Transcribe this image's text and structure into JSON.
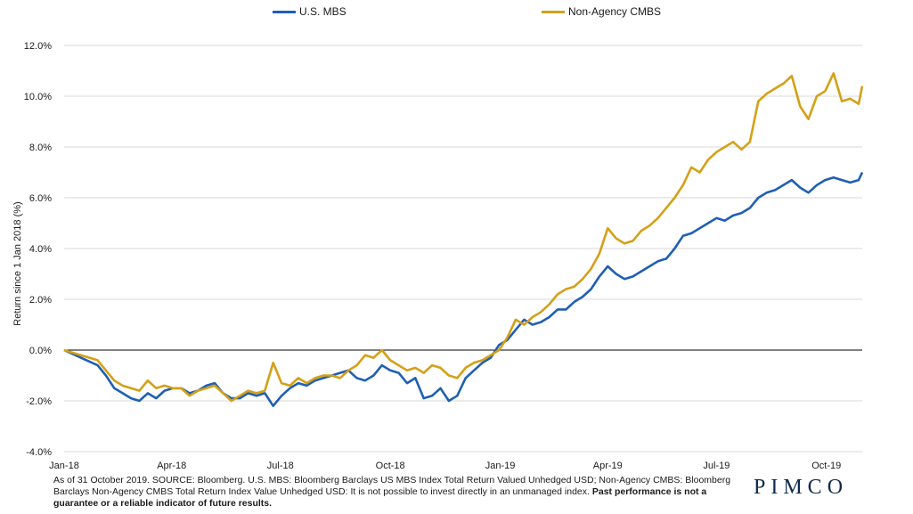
{
  "chart_data": {
    "type": "line",
    "ylabel": "Return since 1 Jan 2018 (%)",
    "xlabel": "",
    "x_ticks": [
      "Jan-18",
      "Apr-18",
      "Jul-18",
      "Oct-18",
      "Jan-19",
      "Apr-19",
      "Jul-19",
      "Oct-19"
    ],
    "y_ticks": [
      "-4.0%",
      "-2.0%",
      "0.0%",
      "2.0%",
      "4.0%",
      "6.0%",
      "8.0%",
      "10.0%",
      "12.0%"
    ],
    "ylim": [
      -4,
      12
    ],
    "xlim": [
      "2018-01-01",
      "2019-10-31"
    ],
    "grid": "horizontal",
    "legend_position": "top",
    "series": [
      {
        "name": "U.S. MBS",
        "color": "#1f5fb4",
        "points": [
          [
            "2018-01-01",
            0.0
          ],
          [
            "2018-01-15",
            -0.3
          ],
          [
            "2018-01-29",
            -0.6
          ],
          [
            "2018-02-05",
            -1.0
          ],
          [
            "2018-02-12",
            -1.5
          ],
          [
            "2018-02-19",
            -1.7
          ],
          [
            "2018-02-26",
            -1.9
          ],
          [
            "2018-03-05",
            -2.0
          ],
          [
            "2018-03-12",
            -1.7
          ],
          [
            "2018-03-19",
            -1.9
          ],
          [
            "2018-03-26",
            -1.6
          ],
          [
            "2018-04-02",
            -1.5
          ],
          [
            "2018-04-09",
            -1.5
          ],
          [
            "2018-04-16",
            -1.7
          ],
          [
            "2018-04-23",
            -1.6
          ],
          [
            "2018-04-30",
            -1.4
          ],
          [
            "2018-05-07",
            -1.3
          ],
          [
            "2018-05-14",
            -1.7
          ],
          [
            "2018-05-21",
            -1.9
          ],
          [
            "2018-05-28",
            -1.9
          ],
          [
            "2018-06-04",
            -1.7
          ],
          [
            "2018-06-11",
            -1.8
          ],
          [
            "2018-06-18",
            -1.7
          ],
          [
            "2018-06-25",
            -2.2
          ],
          [
            "2018-07-02",
            -1.8
          ],
          [
            "2018-07-09",
            -1.5
          ],
          [
            "2018-07-16",
            -1.3
          ],
          [
            "2018-07-23",
            -1.4
          ],
          [
            "2018-07-30",
            -1.2
          ],
          [
            "2018-08-06",
            -1.1
          ],
          [
            "2018-08-13",
            -1.0
          ],
          [
            "2018-08-20",
            -0.9
          ],
          [
            "2018-08-27",
            -0.8
          ],
          [
            "2018-09-03",
            -1.1
          ],
          [
            "2018-09-10",
            -1.2
          ],
          [
            "2018-09-17",
            -1.0
          ],
          [
            "2018-09-24",
            -0.6
          ],
          [
            "2018-10-01",
            -0.8
          ],
          [
            "2018-10-08",
            -0.9
          ],
          [
            "2018-10-15",
            -1.3
          ],
          [
            "2018-10-22",
            -1.1
          ],
          [
            "2018-10-29",
            -1.9
          ],
          [
            "2018-11-05",
            -1.8
          ],
          [
            "2018-11-12",
            -1.5
          ],
          [
            "2018-11-19",
            -2.0
          ],
          [
            "2018-11-26",
            -1.8
          ],
          [
            "2018-12-03",
            -1.1
          ],
          [
            "2018-12-10",
            -0.8
          ],
          [
            "2018-12-17",
            -0.5
          ],
          [
            "2018-12-24",
            -0.3
          ],
          [
            "2018-12-31",
            0.2
          ],
          [
            "2019-01-07",
            0.4
          ],
          [
            "2019-01-14",
            0.8
          ],
          [
            "2019-01-21",
            1.2
          ],
          [
            "2019-01-28",
            1.0
          ],
          [
            "2019-02-04",
            1.1
          ],
          [
            "2019-02-11",
            1.3
          ],
          [
            "2019-02-18",
            1.6
          ],
          [
            "2019-02-25",
            1.6
          ],
          [
            "2019-03-04",
            1.9
          ],
          [
            "2019-03-11",
            2.1
          ],
          [
            "2019-03-18",
            2.4
          ],
          [
            "2019-03-25",
            2.9
          ],
          [
            "2019-04-01",
            3.3
          ],
          [
            "2019-04-08",
            3.0
          ],
          [
            "2019-04-15",
            2.8
          ],
          [
            "2019-04-22",
            2.9
          ],
          [
            "2019-04-29",
            3.1
          ],
          [
            "2019-05-06",
            3.3
          ],
          [
            "2019-05-13",
            3.5
          ],
          [
            "2019-05-20",
            3.6
          ],
          [
            "2019-05-27",
            4.0
          ],
          [
            "2019-06-03",
            4.5
          ],
          [
            "2019-06-10",
            4.6
          ],
          [
            "2019-06-17",
            4.8
          ],
          [
            "2019-06-24",
            5.0
          ],
          [
            "2019-07-01",
            5.2
          ],
          [
            "2019-07-08",
            5.1
          ],
          [
            "2019-07-15",
            5.3
          ],
          [
            "2019-07-22",
            5.4
          ],
          [
            "2019-07-29",
            5.6
          ],
          [
            "2019-08-05",
            6.0
          ],
          [
            "2019-08-12",
            6.2
          ],
          [
            "2019-08-19",
            6.3
          ],
          [
            "2019-08-26",
            6.5
          ],
          [
            "2019-09-02",
            6.7
          ],
          [
            "2019-09-09",
            6.4
          ],
          [
            "2019-09-16",
            6.2
          ],
          [
            "2019-09-23",
            6.5
          ],
          [
            "2019-09-30",
            6.7
          ],
          [
            "2019-10-07",
            6.8
          ],
          [
            "2019-10-14",
            6.7
          ],
          [
            "2019-10-21",
            6.6
          ],
          [
            "2019-10-28",
            6.7
          ],
          [
            "2019-10-31",
            7.0
          ]
        ]
      },
      {
        "name": "Non-Agency CMBS",
        "color": "#d4a017",
        "points": [
          [
            "2018-01-01",
            0.0
          ],
          [
            "2018-01-15",
            -0.2
          ],
          [
            "2018-01-29",
            -0.4
          ],
          [
            "2018-02-05",
            -0.8
          ],
          [
            "2018-02-12",
            -1.2
          ],
          [
            "2018-02-19",
            -1.4
          ],
          [
            "2018-02-26",
            -1.5
          ],
          [
            "2018-03-05",
            -1.6
          ],
          [
            "2018-03-12",
            -1.2
          ],
          [
            "2018-03-19",
            -1.5
          ],
          [
            "2018-03-26",
            -1.4
          ],
          [
            "2018-04-02",
            -1.5
          ],
          [
            "2018-04-09",
            -1.5
          ],
          [
            "2018-04-16",
            -1.8
          ],
          [
            "2018-04-23",
            -1.6
          ],
          [
            "2018-04-30",
            -1.5
          ],
          [
            "2018-05-07",
            -1.4
          ],
          [
            "2018-05-14",
            -1.7
          ],
          [
            "2018-05-21",
            -2.0
          ],
          [
            "2018-05-28",
            -1.8
          ],
          [
            "2018-06-04",
            -1.6
          ],
          [
            "2018-06-11",
            -1.7
          ],
          [
            "2018-06-18",
            -1.6
          ],
          [
            "2018-06-25",
            -0.5
          ],
          [
            "2018-07-02",
            -1.3
          ],
          [
            "2018-07-09",
            -1.4
          ],
          [
            "2018-07-16",
            -1.1
          ],
          [
            "2018-07-23",
            -1.3
          ],
          [
            "2018-07-30",
            -1.1
          ],
          [
            "2018-08-06",
            -1.0
          ],
          [
            "2018-08-13",
            -1.0
          ],
          [
            "2018-08-20",
            -1.1
          ],
          [
            "2018-08-27",
            -0.8
          ],
          [
            "2018-09-03",
            -0.6
          ],
          [
            "2018-09-10",
            -0.2
          ],
          [
            "2018-09-17",
            -0.3
          ],
          [
            "2018-09-24",
            0.0
          ],
          [
            "2018-10-01",
            -0.4
          ],
          [
            "2018-10-08",
            -0.6
          ],
          [
            "2018-10-15",
            -0.8
          ],
          [
            "2018-10-22",
            -0.7
          ],
          [
            "2018-10-29",
            -0.9
          ],
          [
            "2018-11-05",
            -0.6
          ],
          [
            "2018-11-12",
            -0.7
          ],
          [
            "2018-11-19",
            -1.0
          ],
          [
            "2018-11-26",
            -1.1
          ],
          [
            "2018-12-03",
            -0.7
          ],
          [
            "2018-12-10",
            -0.5
          ],
          [
            "2018-12-17",
            -0.4
          ],
          [
            "2018-12-24",
            -0.2
          ],
          [
            "2018-12-31",
            0.0
          ],
          [
            "2019-01-07",
            0.5
          ],
          [
            "2019-01-14",
            1.2
          ],
          [
            "2019-01-21",
            1.0
          ],
          [
            "2019-01-28",
            1.3
          ],
          [
            "2019-02-04",
            1.5
          ],
          [
            "2019-02-11",
            1.8
          ],
          [
            "2019-02-18",
            2.2
          ],
          [
            "2019-02-25",
            2.4
          ],
          [
            "2019-03-04",
            2.5
          ],
          [
            "2019-03-11",
            2.8
          ],
          [
            "2019-03-18",
            3.2
          ],
          [
            "2019-03-25",
            3.8
          ],
          [
            "2019-04-01",
            4.8
          ],
          [
            "2019-04-08",
            4.4
          ],
          [
            "2019-04-15",
            4.2
          ],
          [
            "2019-04-22",
            4.3
          ],
          [
            "2019-04-29",
            4.7
          ],
          [
            "2019-05-06",
            4.9
          ],
          [
            "2019-05-13",
            5.2
          ],
          [
            "2019-05-20",
            5.6
          ],
          [
            "2019-05-27",
            6.0
          ],
          [
            "2019-06-03",
            6.5
          ],
          [
            "2019-06-10",
            7.2
          ],
          [
            "2019-06-17",
            7.0
          ],
          [
            "2019-06-24",
            7.5
          ],
          [
            "2019-07-01",
            7.8
          ],
          [
            "2019-07-08",
            8.0
          ],
          [
            "2019-07-15",
            8.2
          ],
          [
            "2019-07-22",
            7.9
          ],
          [
            "2019-07-29",
            8.2
          ],
          [
            "2019-08-05",
            9.8
          ],
          [
            "2019-08-12",
            10.1
          ],
          [
            "2019-08-19",
            10.3
          ],
          [
            "2019-08-26",
            10.5
          ],
          [
            "2019-09-02",
            10.8
          ],
          [
            "2019-09-09",
            9.6
          ],
          [
            "2019-09-16",
            9.1
          ],
          [
            "2019-09-23",
            10.0
          ],
          [
            "2019-09-30",
            10.2
          ],
          [
            "2019-10-07",
            10.9
          ],
          [
            "2019-10-14",
            9.8
          ],
          [
            "2019-10-21",
            9.9
          ],
          [
            "2019-10-28",
            9.7
          ],
          [
            "2019-10-31",
            10.4
          ]
        ]
      }
    ]
  },
  "footer": {
    "normal": "As of 31 October 2019. SOURCE: Bloomberg. U.S. MBS: Bloomberg Barclays US MBS Index Total Return Valued Unhedged USD; Non-Agency CMBS: Bloomberg Barclays Non-Agency CMBS Total Return Index Value Unhedged USD: It is not possible to invest directly in an unmanaged index.",
    "bold": "Past performance is not a guarantee or a reliable indicator of future results."
  },
  "logo": "PIMCO"
}
